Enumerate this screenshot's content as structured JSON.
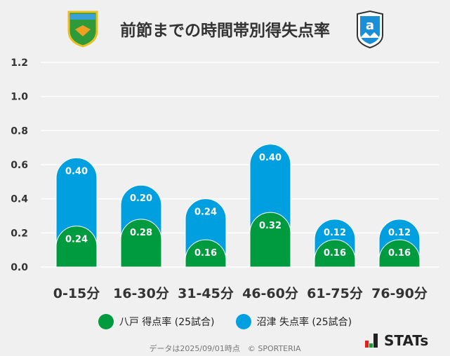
{
  "title": "前節までの時間帯別得失点率",
  "logos": {
    "home": "VANRAURE",
    "away": "azul claro"
  },
  "chart_data": {
    "type": "bar",
    "stacked": true,
    "categories": [
      "0-15分",
      "16-30分",
      "31-45分",
      "46-60分",
      "61-75分",
      "76-90分"
    ],
    "series": [
      {
        "name": "八戸 得点率 (25試合)",
        "color": "#009b3e",
        "values": [
          0.24,
          0.28,
          0.16,
          0.32,
          0.16,
          0.16
        ]
      },
      {
        "name": "沼津 失点率 (25試合)",
        "color": "#00a0e0",
        "values": [
          0.4,
          0.2,
          0.24,
          0.4,
          0.12,
          0.12
        ]
      }
    ],
    "ylim": [
      0,
      1.2
    ],
    "yticks": [
      "0.0",
      "0.2",
      "0.4",
      "0.6",
      "0.8",
      "1.0",
      "1.2"
    ],
    "grid": true,
    "legend": "bottom"
  },
  "footer": "データは2025/09/01時点　© SPORTERIA",
  "brand": "STATs"
}
